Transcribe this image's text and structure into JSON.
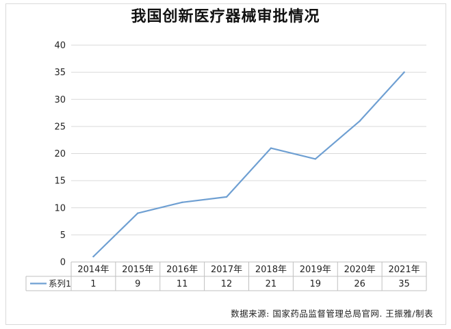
{
  "chart_data": {
    "type": "line",
    "title": "我国创新医疗器械审批情况",
    "categories": [
      "2014年",
      "2015年",
      "2016年",
      "2017年",
      "2018年",
      "2019年",
      "2020年",
      "2021年"
    ],
    "series": [
      {
        "name": "系列1",
        "values": [
          1,
          9,
          11,
          12,
          21,
          19,
          26,
          35
        ],
        "color": "#6e9fd2"
      }
    ],
    "ylim": [
      0,
      40
    ],
    "yticks": [
      0,
      5,
      10,
      15,
      20,
      25,
      30,
      35,
      40
    ],
    "grid": true,
    "data_table": true,
    "xlabel": "",
    "ylabel": ""
  },
  "source_note": "数据来源: 国家药品监督管理总局官网. 王振雅/制表"
}
